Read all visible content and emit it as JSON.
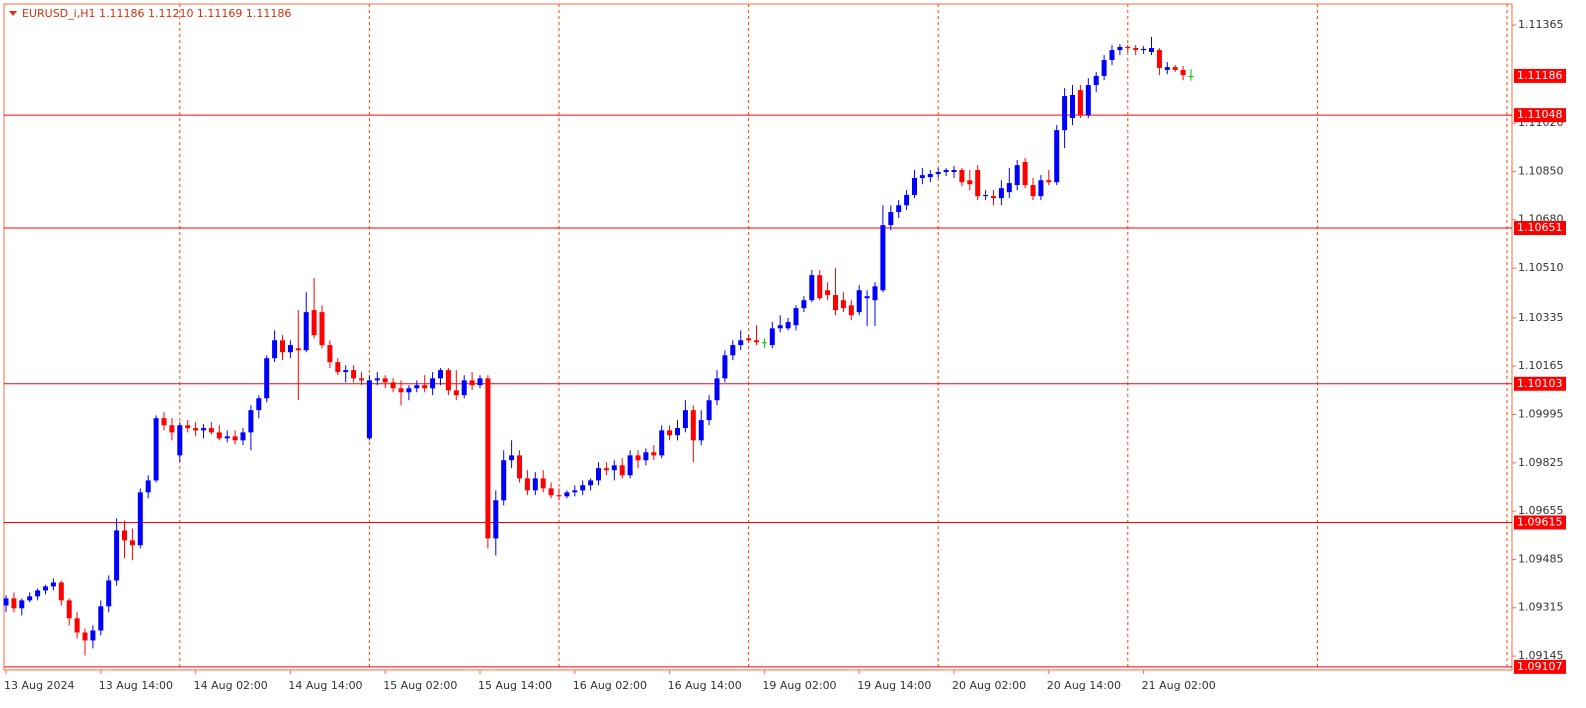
{
  "chart_data": {
    "type": "candlestick",
    "title": "EURUSD_i,H1  1.11186 1.11210 1.11169 1.11186",
    "categories": [
      "13 Aug 2024",
      null,
      null,
      null,
      null,
      null,
      null,
      null,
      null,
      null,
      null,
      null,
      "13 Aug 14:00",
      null,
      null,
      null,
      null,
      null,
      null,
      null,
      null,
      null,
      null,
      null,
      "14 Aug 02:00",
      null,
      null,
      null,
      null,
      null,
      null,
      null,
      null,
      null,
      null,
      null,
      "14 Aug 14:00",
      null,
      null,
      null,
      null,
      null,
      null,
      null,
      null,
      null,
      null,
      null,
      "15 Aug 02:00",
      null,
      null,
      null,
      null,
      null,
      null,
      null,
      null,
      null,
      null,
      null,
      "15 Aug 14:00",
      null,
      null,
      null,
      null,
      null,
      null,
      null,
      null,
      null,
      null,
      null,
      "16 Aug 02:00",
      null,
      null,
      null,
      null,
      null,
      null,
      null,
      null,
      null,
      null,
      null,
      "16 Aug 14:00",
      null,
      null,
      null,
      null,
      null,
      null,
      null,
      null,
      null,
      null,
      null,
      "19 Aug 02:00",
      null,
      null,
      null,
      null,
      null,
      null,
      null,
      null,
      null,
      null,
      null,
      "19 Aug 14:00",
      null,
      null,
      null,
      null,
      null,
      null,
      null,
      null,
      null,
      null,
      null,
      "20 Aug 02:00",
      null,
      null,
      null,
      null,
      null,
      null,
      null,
      null,
      null,
      null,
      null,
      "20 Aug 14:00",
      null,
      null,
      null,
      null,
      null,
      null,
      null,
      null,
      null,
      null,
      null,
      "21 Aug 02:00",
      null,
      null,
      null,
      null,
      null,
      null
    ],
    "open": [
      1.09323,
      1.09348,
      1.09313,
      1.09341,
      1.09355,
      1.09376,
      1.0939,
      1.09404,
      1.09341,
      1.09278,
      1.09228,
      1.092,
      1.09235,
      1.0932,
      1.09411,
      1.09587,
      1.09552,
      1.09535,
      1.09721,
      1.09763,
      1.09982,
      1.09957,
      1.09851,
      1.09957,
      1.09947,
      1.09939,
      1.09947,
      1.09932,
      1.09911,
      1.09918,
      1.09904,
      1.09932,
      1.1001,
      1.10052,
      1.10193,
      1.10256,
      1.10214,
      1.10228,
      1.10221,
      1.10362,
      1.10355,
      1.10239,
      1.10179,
      1.10144,
      1.10151,
      1.10122,
      1.09911,
      1.10115,
      1.10122,
      1.10108,
      1.10087,
      1.10073,
      1.10087,
      1.10098,
      1.10087,
      1.10122,
      1.10151,
      1.1008,
      1.10063,
      1.10115,
      1.10098,
      1.10122,
      1.09559,
      1.09693,
      1.09834,
      1.09851,
      1.0977,
      1.09728,
      1.0977,
      1.09735,
      1.09711,
      1.09707,
      1.09721,
      1.09728,
      1.09746,
      1.09763,
      1.09806,
      1.09799,
      1.09816,
      1.09781,
      1.09851,
      1.09834,
      1.09862,
      1.09851,
      1.09939,
      1.09922,
      1.09947,
      1.1001,
      1.09904,
      1.09975,
      1.10045,
      1.10122,
      1.10203,
      1.10239,
      1.10263,
      1.10256,
      1.10249,
      1.10239,
      1.10298,
      1.10298,
      1.10309,
      1.10369,
      1.10397,
      1.10485,
      1.10432,
      1.10415,
      1.10397,
      1.10379,
      1.10355,
      1.10404,
      1.10397,
      1.10432,
      1.10661,
      1.10707,
      1.10731,
      1.10767,
      1.10827,
      1.1083,
      1.10841,
      1.10848,
      1.10848,
      1.10855,
      1.10819,
      1.10855,
      1.10763,
      1.10763,
      1.10756,
      1.10777,
      1.10802,
      1.10883,
      1.10802,
      1.10763,
      1.10819,
      1.10812,
      1.10995,
      1.11038,
      1.11136,
      1.11048,
      1.11154,
      1.11186,
      1.11242,
      1.11277,
      1.11288,
      1.11284,
      1.11277,
      1.1127,
      1.11277,
      1.11207,
      1.11217,
      1.11207,
      1.11186
    ],
    "high": [
      1.09359,
      1.09369,
      1.09348,
      1.09369,
      1.09383,
      1.09396,
      1.09418,
      1.09411,
      1.09348,
      1.09299,
      1.09242,
      1.09253,
      1.09341,
      1.09429,
      1.09629,
      1.09622,
      1.09594,
      1.09735,
      1.09781,
      1.09992,
      1.10003,
      1.09982,
      1.09968,
      1.09975,
      1.09968,
      1.09961,
      1.09968,
      1.09957,
      1.09939,
      1.09939,
      1.09947,
      1.10027,
      1.10063,
      1.10203,
      1.10291,
      1.10274,
      1.10256,
      1.10362,
      1.10425,
      1.10475,
      1.10379,
      1.10256,
      1.10193,
      1.10168,
      1.10168,
      1.10144,
      1.10133,
      1.10144,
      1.10133,
      1.10122,
      1.10115,
      1.10098,
      1.10115,
      1.10133,
      1.10144,
      1.10158,
      1.10158,
      1.10151,
      1.10133,
      1.10144,
      1.10133,
      1.10133,
      1.09728,
      1.09869,
      1.09904,
      1.09869,
      1.09799,
      1.09792,
      1.09799,
      1.09756,
      1.09735,
      1.09728,
      1.09746,
      1.09763,
      1.0977,
      1.09827,
      1.09827,
      1.09834,
      1.09841,
      1.09869,
      1.09869,
      1.09876,
      1.09887,
      1.09957,
      1.09957,
      1.09975,
      1.10045,
      1.10027,
      1.1001,
      1.10063,
      1.10151,
      1.10221,
      1.10256,
      1.10291,
      1.10274,
      1.10309,
      1.10263,
      1.1032,
      1.10344,
      1.10334,
      1.10379,
      1.10411,
      1.10503,
      1.10503,
      1.1046,
      1.1051,
      1.10425,
      1.10397,
      1.1045,
      1.10432,
      1.1046,
      1.10731,
      1.10731,
      1.10749,
      1.10784,
      1.10855,
      1.10862,
      1.10855,
      1.10862,
      1.10862,
      1.10869,
      1.10862,
      1.10855,
      1.10872,
      1.10784,
      1.10784,
      1.10819,
      1.10862,
      1.1089,
      1.10897,
      1.10827,
      1.10837,
      1.10855,
      1.11013,
      1.11143,
      1.11154,
      1.11154,
      1.11178,
      1.112,
      1.11259,
      1.11295,
      1.11298,
      1.11295,
      1.11295,
      1.11291,
      1.11323,
      1.11284,
      1.11235,
      1.11224,
      1.11221,
      1.1121
    ],
    "low": [
      1.09299,
      1.09299,
      1.09288,
      1.09334,
      1.09341,
      1.09362,
      1.09376,
      1.09323,
      1.09253,
      1.09207,
      1.09147,
      1.09172,
      1.09218,
      1.09299,
      1.09393,
      1.09489,
      1.09482,
      1.09524,
      1.097,
      1.09756,
      1.09939,
      1.09904,
      1.09827,
      1.09932,
      1.09918,
      1.09911,
      1.09925,
      1.09904,
      1.09897,
      1.0989,
      1.09887,
      1.09869,
      1.09982,
      1.10038,
      1.10179,
      1.10186,
      1.10193,
      1.10045,
      1.10214,
      1.10263,
      1.10228,
      1.10158,
      1.10133,
      1.10108,
      1.10108,
      1.10098,
      1.09904,
      1.10098,
      1.10087,
      1.10073,
      1.10027,
      1.10045,
      1.10073,
      1.10073,
      1.10063,
      1.10098,
      1.10063,
      1.10045,
      1.10052,
      1.1008,
      1.10087,
      1.09524,
      1.09499,
      1.09675,
      1.09806,
      1.09756,
      1.09711,
      1.09711,
      1.09721,
      1.097,
      1.09693,
      1.097,
      1.09707,
      1.09711,
      1.09728,
      1.09746,
      1.09781,
      1.09763,
      1.0977,
      1.0977,
      1.09806,
      1.09816,
      1.09834,
      1.09841,
      1.09904,
      1.09904,
      1.09932,
      1.09827,
      1.09887,
      1.09957,
      1.10027,
      1.10108,
      1.10186,
      1.10221,
      1.10249,
      1.10239,
      1.10228,
      1.10228,
      1.10284,
      1.10291,
      1.10291,
      1.10355,
      1.1039,
      1.10397,
      1.10397,
      1.10344,
      1.10355,
      1.10327,
      1.10344,
      1.10306,
      1.10306,
      1.10425,
      1.10643,
      1.10686,
      1.10714,
      1.10756,
      1.10805,
      1.10812,
      1.10827,
      1.10834,
      1.10827,
      1.10798,
      1.10784,
      1.10749,
      1.10749,
      1.10731,
      1.10731,
      1.10756,
      1.10784,
      1.10791,
      1.10749,
      1.10749,
      1.10802,
      1.10802,
      1.10932,
      1.11013,
      1.11038,
      1.11038,
      1.11129,
      1.11171,
      1.11224,
      1.11259,
      1.1127,
      1.11259,
      1.11263,
      1.11259,
      1.11189,
      1.11192,
      1.112,
      1.11171,
      1.11169
    ],
    "close": [
      1.09348,
      1.09313,
      1.09341,
      1.09355,
      1.09376,
      1.0939,
      1.09404,
      1.09341,
      1.09278,
      1.09228,
      1.092,
      1.09235,
      1.0932,
      1.09411,
      1.09587,
      1.09552,
      1.09535,
      1.09721,
      1.09763,
      1.09982,
      1.09957,
      1.09932,
      1.09957,
      1.09947,
      1.09939,
      1.09947,
      1.09932,
      1.09911,
      1.09918,
      1.09904,
      1.09932,
      1.1001,
      1.10052,
      1.10193,
      1.10256,
      1.10214,
      1.10239,
      1.10221,
      1.10355,
      1.10274,
      1.10239,
      1.10179,
      1.10144,
      1.10151,
      1.10122,
      1.10115,
      1.10115,
      1.10122,
      1.10108,
      1.10087,
      1.10073,
      1.10087,
      1.10098,
      1.10087,
      1.10122,
      1.10151,
      1.1008,
      1.10063,
      1.10115,
      1.10098,
      1.10122,
      1.09559,
      1.09693,
      1.09834,
      1.09851,
      1.0977,
      1.09728,
      1.0977,
      1.09735,
      1.09711,
      1.09707,
      1.09721,
      1.09728,
      1.09746,
      1.09763,
      1.09806,
      1.09799,
      1.09816,
      1.09781,
      1.09851,
      1.09834,
      1.09862,
      1.09851,
      1.09939,
      1.09922,
      1.09947,
      1.1001,
      1.09904,
      1.09975,
      1.10045,
      1.10122,
      1.10203,
      1.10239,
      1.10256,
      1.10256,
      1.10249,
      1.10249,
      1.10298,
      1.10309,
      1.1032,
      1.10369,
      1.10397,
      1.10485,
      1.10404,
      1.10415,
      1.10362,
      1.10369,
      1.10344,
      1.10432,
      1.10411,
      1.10446,
      1.10661,
      1.10707,
      1.10731,
      1.10767,
      1.10827,
      1.10837,
      1.10841,
      1.10848,
      1.10855,
      1.10855,
      1.10812,
      1.10805,
      1.10763,
      1.10767,
      1.10756,
      1.10791,
      1.10809,
      1.10872,
      1.10802,
      1.10763,
      1.10819,
      1.10812,
      1.10995,
      1.11115,
      1.11119,
      1.11048,
      1.11154,
      1.11186,
      1.11242,
      1.11277,
      1.11288,
      1.11284,
      1.11277,
      1.11281,
      1.11284,
      1.11214,
      1.11217,
      1.11207,
      1.11189,
      1.11186
    ],
    "up_color": "#0000ff",
    "down_color": "#ff0000",
    "doji_color": "#00c000",
    "ylim": [
      1.09096,
      1.11439
    ],
    "yticks": [
      1.11365,
      {
        "value": 1.1102,
        "label": "1.11020"
      },
      {
        "value": 1.1085,
        "label": "1.10850"
      },
      {
        "value": 1.1068,
        "label": "1.10680"
      },
      {
        "value": 1.1051,
        "label": "1.10510"
      },
      1.10335,
      1.10165,
      1.09995,
      1.09825,
      1.09655,
      1.09485,
      1.09315,
      1.09145
    ],
    "levels": [
      1.11048,
      1.10651,
      1.10103,
      1.09615,
      1.09107
    ],
    "level_color": "#ff0000"
  }
}
